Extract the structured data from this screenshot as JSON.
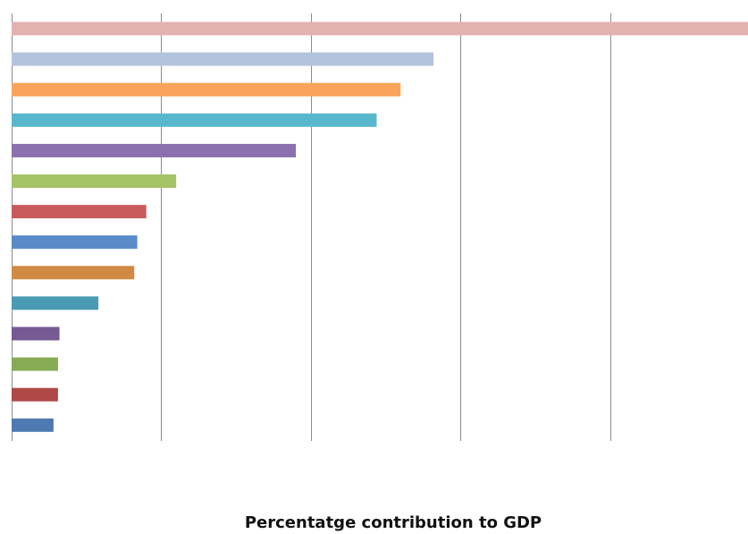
{
  "chart_data": {
    "type": "bar",
    "orientation": "horizontal",
    "title": "",
    "xlabel": "Percentatge contribution to GDP",
    "ylabel": "",
    "grid": "vertical",
    "legend": "none",
    "xlim": [
      0,
      25
    ],
    "categories": [
      "",
      "",
      "",
      "",
      "",
      "",
      "",
      "",
      "",
      "",
      "",
      "",
      "",
      ""
    ],
    "values": [
      24.8,
      14.1,
      13.0,
      12.2,
      9.5,
      5.5,
      4.5,
      4.2,
      4.1,
      2.9,
      1.6,
      1.55,
      1.55,
      1.4
    ],
    "colors": [
      "#e3b1b0",
      "#b3c3dd",
      "#f9a45a",
      "#58b7cd",
      "#8b70ae",
      "#a4c466",
      "#c95a5c",
      "#5a8bc9",
      "#d18a44",
      "#4a9cb4",
      "#765a94",
      "#86ab53",
      "#b04848",
      "#4d7ab1"
    ]
  }
}
